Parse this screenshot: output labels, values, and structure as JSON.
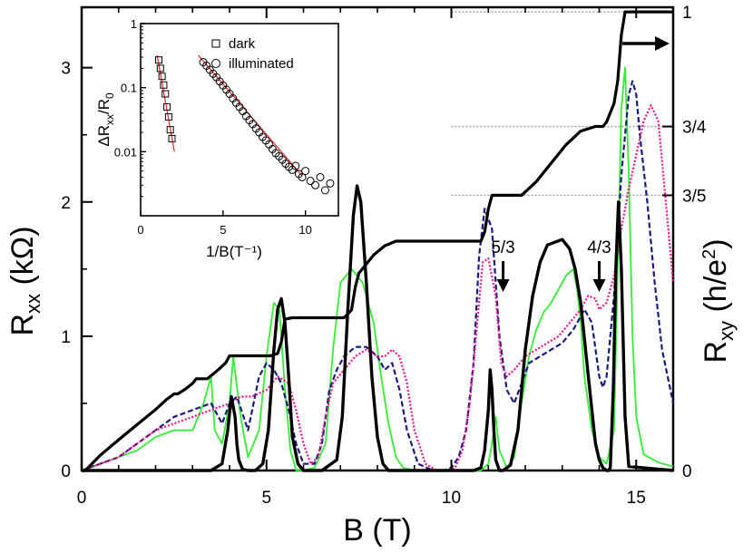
{
  "chart_data": [
    {
      "type": "line",
      "title": "",
      "xlabel": "B (T)",
      "ylabel_left": {
        "main": "R",
        "sub": "xx",
        "units": " (kΩ)"
      },
      "ylabel_right": {
        "main": "R",
        "sub": "xy",
        "units_pre": " (h/e",
        "units_sup": "2",
        "units_post": ")"
      },
      "xlim": [
        0,
        16
      ],
      "ylim_left": [
        0,
        3.45
      ],
      "xticks": [
        0,
        5,
        10,
        15
      ],
      "yticks_left": [
        0,
        1,
        2,
        3
      ],
      "yticks_right": [
        {
          "label": "0",
          "value": 0
        },
        {
          "label": "3/5",
          "value": 0.6
        },
        {
          "label": "3/4",
          "value": 0.75
        },
        {
          "label": "1",
          "value": 1.0
        }
      ],
      "ylim_right": [
        0,
        1.01
      ],
      "annotations": [
        {
          "text": "5/3",
          "x": 11.4,
          "y": 1.62,
          "arrow_to": 1.33
        },
        {
          "text": "4/3",
          "x": 14.0,
          "y": 1.62,
          "arrow_to": 1.33
        }
      ],
      "series": [
        {
          "role": "Rxy",
          "axis": "right",
          "color": "#000000",
          "style": "solid",
          "width": 3.2,
          "x": [
            0,
            0.1,
            0.5,
            1.0,
            1.5,
            2.0,
            2.3,
            2.5,
            2.6,
            2.8,
            3.0,
            3.1,
            3.4,
            3.7,
            3.9,
            4.0,
            4.1,
            4.2,
            5.1,
            5.3,
            5.4,
            5.5,
            5.7,
            7.1,
            7.3,
            7.4,
            7.5,
            7.9,
            8.2,
            8.5,
            10.8,
            10.9,
            11.0,
            11.1,
            11.9,
            12.3,
            12.7,
            13.1,
            13.5,
            13.9,
            14.1,
            14.2,
            14.4,
            14.5,
            14.6,
            14.7,
            16.0
          ],
          "y": [
            0.0,
            0.0,
            0.033,
            0.067,
            0.1,
            0.133,
            0.155,
            0.167,
            0.167,
            0.177,
            0.19,
            0.2,
            0.2,
            0.22,
            0.235,
            0.25,
            0.25,
            0.25,
            0.25,
            0.255,
            0.28,
            0.33,
            0.333,
            0.333,
            0.35,
            0.4,
            0.43,
            0.47,
            0.49,
            0.5,
            0.5,
            0.52,
            0.57,
            0.6,
            0.6,
            0.63,
            0.67,
            0.71,
            0.74,
            0.75,
            0.75,
            0.76,
            0.8,
            0.85,
            0.95,
            1.0,
            1.0
          ]
        },
        {
          "role": "Rxx",
          "axis": "left",
          "color": "#000000",
          "style": "solid",
          "width": 3.4,
          "x": [
            0,
            0.5,
            1.0,
            1.5,
            2.0,
            2.5,
            3.0,
            3.5,
            3.8,
            3.95,
            4.05,
            4.15,
            4.2,
            4.25,
            4.35,
            4.5,
            4.7,
            4.9,
            5.05,
            5.2,
            5.3,
            5.4,
            5.5,
            5.6,
            5.7,
            5.85,
            6.0,
            6.5,
            6.9,
            7.05,
            7.2,
            7.35,
            7.45,
            7.55,
            7.7,
            7.85,
            8.0,
            8.15,
            8.3,
            8.6,
            9.5,
            10.6,
            10.8,
            10.9,
            11.0,
            11.05,
            11.1,
            11.15,
            11.2,
            11.3,
            11.4,
            11.6,
            11.8,
            12.0,
            12.2,
            12.4,
            12.6,
            12.8,
            13.0,
            13.2,
            13.35,
            13.5,
            13.65,
            13.8,
            13.9,
            14.0,
            14.1,
            14.2,
            14.25,
            14.3,
            14.38,
            14.45,
            14.52,
            14.6,
            14.7,
            14.8,
            16.0
          ],
          "y": [
            0.0,
            0.0,
            0.0,
            0.0,
            0.0,
            0.0,
            0.0,
            0.0,
            0.05,
            0.3,
            0.55,
            0.4,
            0.2,
            0.08,
            0.01,
            0.0,
            0.0,
            0.05,
            0.3,
            0.9,
            1.2,
            1.28,
            1.1,
            0.7,
            0.25,
            0.05,
            0.0,
            0.0,
            0.08,
            0.4,
            1.2,
            1.9,
            2.12,
            2.0,
            1.4,
            0.7,
            0.25,
            0.05,
            0.0,
            0.0,
            0.0,
            0.0,
            0.02,
            0.15,
            0.45,
            0.75,
            0.6,
            0.3,
            0.08,
            0.0,
            0.0,
            0.04,
            0.3,
            0.9,
            1.3,
            1.55,
            1.68,
            1.7,
            1.72,
            1.65,
            1.5,
            1.25,
            0.85,
            0.45,
            0.2,
            0.08,
            0.02,
            0.0,
            0.0,
            0.02,
            0.6,
            1.5,
            2.0,
            1.5,
            0.4,
            0.03,
            0.0
          ]
        },
        {
          "role": "Rxx",
          "axis": "left",
          "color": "#33ee33",
          "style": "solid",
          "width": 1.8,
          "x": [
            0,
            0.5,
            1.0,
            1.5,
            2.0,
            2.5,
            3.0,
            3.3,
            3.5,
            3.6,
            3.8,
            4.0,
            4.1,
            4.3,
            4.5,
            4.8,
            5.0,
            5.2,
            5.35,
            5.5,
            5.65,
            5.8,
            6.0,
            6.3,
            6.6,
            6.8,
            7.0,
            7.3,
            7.6,
            7.9,
            8.1,
            8.3,
            8.5,
            8.7,
            9.0,
            10.0,
            10.8,
            11.0,
            11.1,
            11.2,
            11.3,
            11.5,
            11.7,
            11.9,
            12.1,
            12.3,
            12.5,
            12.7,
            12.9,
            13.1,
            13.3,
            13.4,
            13.5,
            13.6,
            13.8,
            14.0,
            14.2,
            14.4,
            14.5,
            14.6,
            14.7,
            14.8,
            14.9,
            15.0,
            15.2,
            15.6,
            16.0
          ],
          "y": [
            0.0,
            0.05,
            0.1,
            0.15,
            0.25,
            0.3,
            0.3,
            0.5,
            0.7,
            0.3,
            0.2,
            0.5,
            0.85,
            0.4,
            0.1,
            0.3,
            0.85,
            1.25,
            1.2,
            0.6,
            0.15,
            0.0,
            0.0,
            0.02,
            0.2,
            0.9,
            1.4,
            1.5,
            1.4,
            1.1,
            0.7,
            0.35,
            0.1,
            0.02,
            0.0,
            0.0,
            0.0,
            0.05,
            0.2,
            0.4,
            0.15,
            0.02,
            0.1,
            0.5,
            0.85,
            1.05,
            1.18,
            1.25,
            1.35,
            1.45,
            1.5,
            1.35,
            1.1,
            0.7,
            0.3,
            0.1,
            0.05,
            0.3,
            1.5,
            2.7,
            3.0,
            2.2,
            1.0,
            0.4,
            0.12,
            0.06,
            0.03
          ]
        },
        {
          "role": "Rxx",
          "axis": "left",
          "color": "#1a1a80",
          "style": "dashed",
          "width": 2.2,
          "x": [
            0,
            0.5,
            1.0,
            1.5,
            2.0,
            2.5,
            3.0,
            3.5,
            3.8,
            4.0,
            4.2,
            4.5,
            4.8,
            5.0,
            5.2,
            5.4,
            5.6,
            5.8,
            6.0,
            6.3,
            6.5,
            6.7,
            6.9,
            7.1,
            7.4,
            7.7,
            8.0,
            8.2,
            8.4,
            8.6,
            8.8,
            9.1,
            9.5,
            9.8,
            10.0,
            10.2,
            10.4,
            10.6,
            10.75,
            10.9,
            11.1,
            11.3,
            11.5,
            11.7,
            11.9,
            12.1,
            12.4,
            12.7,
            13.0,
            13.3,
            13.6,
            13.8,
            14.0,
            14.1,
            14.2,
            14.4,
            14.6,
            14.8,
            14.9,
            15.0,
            15.1,
            15.3,
            15.5,
            15.7,
            16.0
          ],
          "y": [
            0.0,
            0.05,
            0.1,
            0.2,
            0.3,
            0.4,
            0.45,
            0.5,
            0.35,
            0.5,
            0.55,
            0.3,
            0.7,
            0.8,
            0.75,
            0.65,
            0.45,
            0.2,
            0.05,
            0.05,
            0.2,
            0.6,
            0.75,
            0.85,
            0.92,
            0.92,
            0.85,
            0.75,
            0.8,
            0.6,
            0.3,
            0.05,
            0.0,
            0.0,
            0.02,
            0.1,
            0.3,
            0.8,
            1.6,
            1.95,
            1.8,
            1.0,
            0.6,
            0.5,
            0.65,
            0.8,
            0.85,
            0.9,
            0.95,
            1.05,
            1.2,
            1.1,
            0.7,
            0.62,
            0.7,
            1.3,
            2.2,
            2.8,
            2.9,
            2.8,
            2.5,
            2.0,
            1.4,
            0.9,
            0.5
          ]
        },
        {
          "role": "Rxx",
          "axis": "left",
          "color": "#ee1188",
          "style": "dotted",
          "width": 2.2,
          "x": [
            0,
            0.5,
            1.0,
            1.5,
            2.0,
            2.5,
            3.0,
            3.5,
            4.0,
            4.3,
            4.6,
            5.0,
            5.3,
            5.6,
            5.8,
            6.0,
            6.2,
            6.4,
            6.6,
            6.8,
            7.1,
            7.4,
            7.7,
            8.0,
            8.2,
            8.4,
            8.6,
            8.8,
            9.0,
            9.3,
            9.6,
            9.9,
            10.1,
            10.3,
            10.5,
            10.7,
            10.85,
            11.0,
            11.2,
            11.35,
            11.5,
            11.7,
            12.0,
            12.3,
            12.6,
            12.9,
            13.2,
            13.5,
            13.7,
            13.9,
            14.0,
            14.2,
            14.4,
            14.6,
            14.8,
            15.0,
            15.2,
            15.4,
            15.6,
            15.8,
            16.0
          ],
          "y": [
            0.0,
            0.05,
            0.1,
            0.2,
            0.3,
            0.35,
            0.4,
            0.45,
            0.5,
            0.55,
            0.55,
            0.6,
            0.7,
            0.65,
            0.45,
            0.2,
            0.05,
            0.1,
            0.4,
            0.65,
            0.75,
            0.85,
            0.9,
            0.85,
            0.85,
            0.9,
            0.85,
            0.65,
            0.3,
            0.05,
            0.0,
            0.0,
            0.02,
            0.15,
            0.5,
            1.1,
            1.55,
            1.58,
            1.3,
            0.8,
            0.7,
            0.75,
            0.85,
            0.9,
            0.95,
            1.0,
            1.1,
            1.2,
            1.3,
            1.28,
            1.2,
            1.25,
            1.45,
            1.8,
            2.1,
            2.35,
            2.6,
            2.72,
            2.6,
            2.0,
            1.4
          ]
        }
      ]
    },
    {
      "type": "scatter",
      "title": "",
      "xlabel": "1/B(T⁻¹)",
      "ylabel": {
        "main": "ΔR",
        "sub": "xx",
        "mid": "/R",
        "sub2": "0"
      },
      "xlim": [
        0,
        12
      ],
      "ylim": [
        0.001,
        1
      ],
      "yscale": "log",
      "xticks": [
        0,
        5,
        10
      ],
      "yticks": [
        {
          "label": "1",
          "value": 1
        },
        {
          "label": "0.1",
          "value": 0.1
        },
        {
          "label": "0.01",
          "value": 0.01
        }
      ],
      "legend": {
        "placement": "top-right",
        "entries": [
          {
            "label": "dark",
            "marker": "square"
          },
          {
            "label": "illuminated",
            "marker": "circle"
          }
        ]
      },
      "series": [
        {
          "name": "dark",
          "marker": "square",
          "x": [
            1.1,
            1.2,
            1.3,
            1.4,
            1.5,
            1.6,
            1.7,
            1.8,
            1.9
          ],
          "y": [
            0.27,
            0.2,
            0.15,
            0.11,
            0.08,
            0.05,
            0.035,
            0.022,
            0.016
          ],
          "fit": {
            "x": [
              1.0,
              2.05
            ],
            "y": [
              0.32,
              0.01
            ]
          }
        },
        {
          "name": "illuminated",
          "marker": "circle",
          "x": [
            3.8,
            4.0,
            4.2,
            4.4,
            4.6,
            4.8,
            5.0,
            5.2,
            5.4,
            5.6,
            5.8,
            6.0,
            6.2,
            6.4,
            6.6,
            6.8,
            7.0,
            7.2,
            7.4,
            7.6,
            7.8,
            8.0,
            8.2,
            8.4,
            8.6,
            8.8,
            9.0,
            9.2,
            9.4,
            9.6,
            9.8,
            10.0,
            10.3,
            10.6,
            10.9,
            11.2,
            11.5
          ],
          "y": [
            0.25,
            0.22,
            0.19,
            0.165,
            0.145,
            0.125,
            0.108,
            0.093,
            0.08,
            0.068,
            0.058,
            0.05,
            0.043,
            0.036,
            0.031,
            0.027,
            0.023,
            0.02,
            0.017,
            0.015,
            0.013,
            0.011,
            0.0095,
            0.0085,
            0.0075,
            0.0065,
            0.0058,
            0.0052,
            0.006,
            0.0045,
            0.004,
            0.005,
            0.0035,
            0.003,
            0.004,
            0.0025,
            0.0032
          ],
          "fit": {
            "x": [
              3.5,
              9.8
            ],
            "y": [
              0.32,
              0.0042
            ]
          }
        }
      ]
    }
  ]
}
